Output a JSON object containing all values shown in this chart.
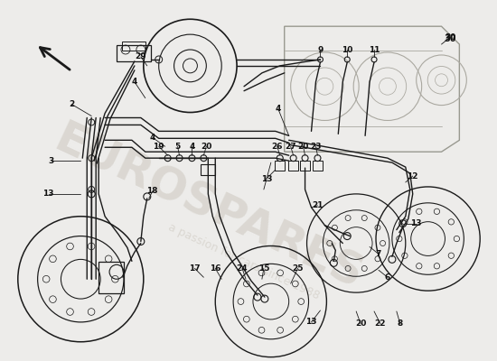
{
  "bg_color": "#edecea",
  "line_color": "#1a1a1a",
  "label_color": "#111111",
  "watermark_text": "EUROSPARES",
  "watermark_sub": "a passion for cars since 1988",
  "watermark_color": "#c5bfb5",
  "figsize": [
    5.5,
    4.0
  ],
  "dpi": 100
}
